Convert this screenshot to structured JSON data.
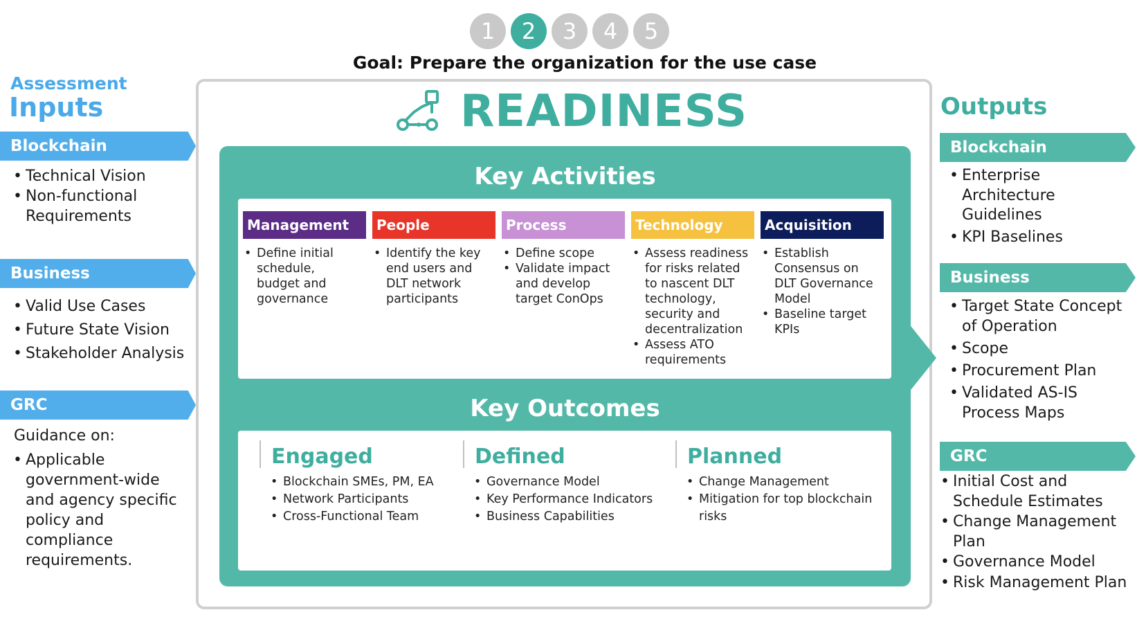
{
  "steps": [
    "1",
    "2",
    "3",
    "4",
    "5"
  ],
  "goal": "Goal: Prepare the organization for the use case",
  "title": "READINESS",
  "icon": "workflow-icon",
  "inputs": {
    "title_line1": "Assessment",
    "title_line2": "Inputs",
    "blockchain": {
      "label": "Blockchain",
      "items": [
        "Technical Vision",
        "Non-functional Requirements"
      ]
    },
    "business": {
      "label": "Business",
      "items": [
        "Valid Use Cases",
        "Future State Vision",
        "Stakeholder Analysis"
      ]
    },
    "grc": {
      "label": "GRC",
      "intro": "Guidance on:",
      "items": [
        "Applicable government-wide and agency specific policy and compliance requirements."
      ]
    }
  },
  "key_activities": {
    "title": "Key Activities",
    "categories": [
      {
        "label": "Management",
        "color": "#5b2d86",
        "items": [
          "Define initial schedule, budget and governance"
        ]
      },
      {
        "label": "People",
        "color": "#e8352a",
        "items": [
          "Identify the key end users and DLT network participants"
        ]
      },
      {
        "label": "Process",
        "color": "#c891d6",
        "items": [
          "Define scope",
          "Validate impact and develop target ConOps"
        ]
      },
      {
        "label": "Technology",
        "color": "#f5c13f",
        "items": [
          "Assess readiness for risks related to nascent DLT technology, security and decentralization",
          "Assess ATO requirements"
        ]
      },
      {
        "label": "Acquisition",
        "color": "#0d1d5b",
        "items": [
          "Establish Consensus on DLT Governance Model",
          "Baseline target KPIs"
        ]
      }
    ]
  },
  "key_outcomes": {
    "title": "Key Outcomes",
    "groups": [
      {
        "label": "Engaged",
        "items": [
          "Blockchain SMEs, PM, EA",
          "Network Participants",
          "Cross-Functional Team"
        ]
      },
      {
        "label": "Defined",
        "items": [
          "Governance Model",
          "Key Performance Indicators",
          "Business Capabilities"
        ]
      },
      {
        "label": "Planned",
        "items": [
          "Change Management",
          "Mitigation for top blockchain risks"
        ]
      }
    ]
  },
  "outputs": {
    "title": "Outputs",
    "blockchain": {
      "label": "Blockchain",
      "items": [
        "Enterprise Architecture Guidelines",
        "KPI Baselines"
      ]
    },
    "business": {
      "label": "Business",
      "items": [
        "Target State Concept of Operation",
        "Scope",
        "Procurement Plan",
        "Validated AS-IS Process Maps"
      ]
    },
    "grc": {
      "label": "GRC",
      "items": [
        "Initial Cost and Schedule Estimates",
        "Change Management Plan",
        "Governance Model",
        "Risk Management Plan"
      ]
    }
  },
  "colors": {
    "teal": "#54b8a9",
    "teal_dark": "#3fae9f",
    "blue": "#52aeea",
    "step_inactive": "#c9c9c9"
  }
}
